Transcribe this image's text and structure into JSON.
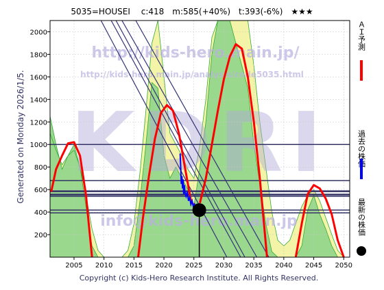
{
  "header": {
    "title": "5035=HOUSEI　 c:418　m:585(+40%)　t:393(-6%)　★★★"
  },
  "side_label": "Generated on Monday 2026/1/5.",
  "legend": {
    "items": [
      {
        "label": "ＡＩ予測",
        "color": "#ff0000",
        "kind": "line"
      },
      {
        "label": "過去の株価",
        "color": "#0000ff",
        "kind": "line"
      },
      {
        "label": "最新の株価",
        "color": "#000000",
        "kind": "dot"
      }
    ]
  },
  "watermarks": {
    "big": "KDRI",
    "url": "http://kids-hero.main.jp/",
    "page": "http://kids-hero.main.jp/analysis/code5035.html",
    "mail": "info@kids-hero.main.jp"
  },
  "footer": "Copyright (c) Kids-Hero Research Institute. All Rights Reserved.",
  "chart_data": {
    "type": "line",
    "title": "5035=HOUSEI　 c:418　m:585(+40%)　t:393(-6%)　★★★",
    "xlim": [
      2001,
      2051
    ],
    "ylim": [
      0,
      2100
    ],
    "x_ticks": [
      2005,
      2010,
      2015,
      2020,
      2025,
      2030,
      2035,
      2040,
      2045,
      2050
    ],
    "y_ticks": [
      200,
      400,
      600,
      800,
      1000,
      1200,
      1400,
      1600,
      1800,
      2000
    ],
    "colors": {
      "ai": "#ff0000",
      "past": "#0000ff",
      "latest": "#000000",
      "hline": "#333366",
      "green": "#66cc66",
      "yellow": "#f4f4a8",
      "lightgreen": "#b8e8b0"
    },
    "ai_prediction": [
      {
        "x": [
          2001.2,
          2002,
          2003,
          2004,
          2005,
          2006,
          2007,
          2008.0
        ],
        "y": [
          580,
          780,
          900,
          1010,
          1020,
          900,
          550,
          0
        ]
      },
      {
        "x": [
          2015.7,
          2016.5,
          2017.5,
          2018.5,
          2019.5,
          2020.5,
          2021.5,
          2022.5,
          2023.5,
          2024.5,
          2025.5
        ],
        "y": [
          0,
          350,
          720,
          1050,
          1280,
          1350,
          1300,
          1100,
          800,
          500,
          420
        ]
      },
      {
        "x": [
          2026,
          2027,
          2028,
          2029,
          2030,
          2031,
          2032,
          2033,
          2034,
          2035,
          2036,
          2037.2
        ],
        "y": [
          480,
          700,
          1000,
          1300,
          1580,
          1780,
          1890,
          1850,
          1600,
          1200,
          700,
          0
        ]
      },
      {
        "x": [
          2042.0,
          2043,
          2044,
          2045,
          2046,
          2047,
          2048,
          2049,
          2050
        ],
        "y": [
          0,
          300,
          560,
          640,
          610,
          520,
          380,
          150,
          0
        ]
      }
    ],
    "past_prices": {
      "x": [
        2022.7,
        2022.8,
        2022.9,
        2023.0,
        2023.1,
        2023.2,
        2023.3,
        2023.4,
        2023.5,
        2023.7,
        2023.9,
        2024.1,
        2024.3,
        2024.5,
        2024.7,
        2024.9,
        2025.1,
        2025.3,
        2025.5,
        2025.7,
        2025.9
      ],
      "y": [
        920,
        800,
        650,
        720,
        610,
        690,
        560,
        640,
        580,
        540,
        580,
        500,
        530,
        470,
        500,
        450,
        470,
        430,
        450,
        420,
        418
      ]
    },
    "latest_price": {
      "x": 2025.9,
      "y": 418
    },
    "horizontal_lines": [
      1000,
      680,
      585,
      555,
      540,
      418,
      393
    ],
    "trend_lines": [
      {
        "x": [
          2009.5,
          2030.5
        ],
        "y": [
          2100,
          0
        ]
      },
      {
        "x": [
          2011.2,
          2032.8
        ],
        "y": [
          2100,
          0
        ]
      },
      {
        "x": [
          2012.0,
          2033.5
        ],
        "y": [
          2100,
          0
        ]
      },
      {
        "x": [
          2013.0,
          2035.5
        ],
        "y": [
          2100,
          0
        ]
      },
      {
        "x": [
          2015.3,
          2037.5
        ],
        "y": [
          2100,
          0
        ]
      }
    ],
    "green_band": {
      "x": [
        2001,
        2002,
        2003,
        2004,
        2005,
        2006,
        2007,
        2008,
        2009,
        2010,
        2011,
        2012,
        2013,
        2014,
        2015,
        2016,
        2017,
        2018,
        2019,
        2020,
        2021,
        2022,
        2023,
        2024,
        2025,
        2026,
        2027,
        2028,
        2029,
        2030,
        2031,
        2032,
        2033,
        2034,
        2035,
        2036,
        2037,
        2038,
        2039,
        2040,
        2041,
        2042,
        2043,
        2044,
        2045,
        2046,
        2047,
        2048,
        2049,
        2050,
        2051
      ],
      "y": [
        1250,
        1000,
        780,
        900,
        1000,
        800,
        450,
        100,
        0,
        0,
        0,
        0,
        0,
        0,
        100,
        500,
        1000,
        1550,
        1500,
        900,
        700,
        800,
        700,
        600,
        450,
        800,
        1200,
        1800,
        2100,
        2100,
        2100,
        1900,
        1700,
        1500,
        1000,
        650,
        300,
        50,
        0,
        0,
        0,
        0,
        100,
        420,
        550,
        380,
        250,
        100,
        0,
        0,
        0
      ]
    },
    "yellow_band": {
      "x": [
        2001,
        2002,
        2003,
        2004,
        2005,
        2006,
        2007,
        2008,
        2009,
        2010,
        2011,
        2012,
        2013,
        2014,
        2015,
        2016,
        2017,
        2018,
        2019,
        2020,
        2021,
        2022,
        2023,
        2024,
        2025,
        2026,
        2027,
        2028,
        2029,
        2030,
        2031,
        2032,
        2033,
        2034,
        2035,
        2036,
        2037,
        2038,
        2039,
        2040,
        2041,
        2042,
        2043,
        2044,
        2045,
        2046,
        2047,
        2048,
        2049,
        2050,
        2051
      ],
      "y": [
        1100,
        950,
        820,
        900,
        950,
        800,
        550,
        250,
        60,
        0,
        0,
        0,
        0,
        60,
        300,
        750,
        1300,
        1900,
        2100,
        1600,
        1100,
        1000,
        900,
        780,
        700,
        1000,
        1400,
        1950,
        2100,
        2100,
        2100,
        2100,
        2100,
        2100,
        1700,
        1200,
        800,
        400,
        150,
        100,
        150,
        300,
        450,
        550,
        600,
        500,
        350,
        200,
        60,
        0,
        0
      ]
    }
  }
}
